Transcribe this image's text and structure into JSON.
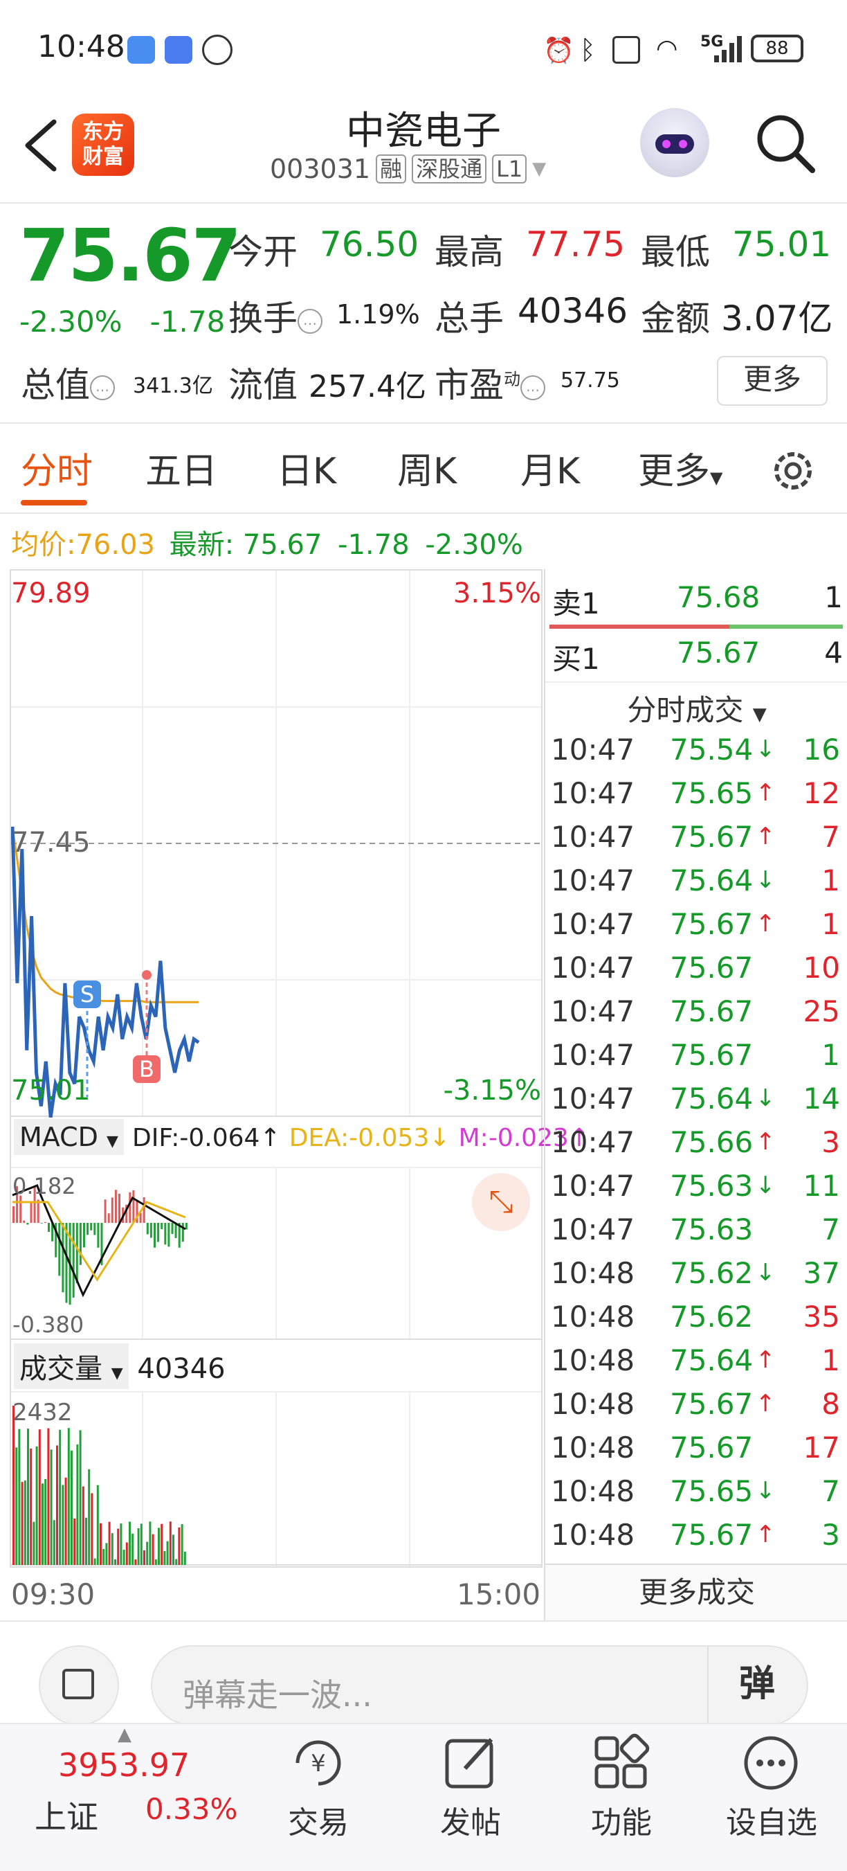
{
  "status_bar": {
    "time": "10:48",
    "battery": "88",
    "network": "5G"
  },
  "header": {
    "logo_text_line1": "东方",
    "logo_text_line2": "财富",
    "stock_name": "中瓷电子",
    "stock_code": "003031",
    "tags": [
      "融",
      "深股通",
      "L1"
    ]
  },
  "quote": {
    "price": "75.67",
    "change_pct": "-2.30%",
    "change_abs": "-1.78",
    "open_label": "今开",
    "open": "76.50",
    "high_label": "最高",
    "high": "77.75",
    "low_label": "最低",
    "low": "75.01",
    "turnover_label": "换手",
    "turnover": "1.19%",
    "volume_label": "总手",
    "volume": "40346",
    "amount_label": "金额",
    "amount": "3.07亿",
    "total_cap_label": "总值",
    "total_cap": "341.3亿",
    "float_cap_label": "流值",
    "float_cap": "257.4亿",
    "pe_label": "市盈",
    "pe_sup": "动",
    "pe": "57.75",
    "more_label": "更多",
    "colors": {
      "up": "#e0242b",
      "down": "#159a2a"
    }
  },
  "tabs": [
    "分时",
    "五日",
    "日K",
    "周K",
    "月K",
    "更多"
  ],
  "active_tab": "分时",
  "avg_line": {
    "avg_label": "均价:",
    "avg_value": "76.03",
    "latest_label": "最新:",
    "latest_value": "75.67",
    "latest_change": "-1.78",
    "latest_pct": "-2.30%"
  },
  "intraday": {
    "y_top": "79.89",
    "y_mid": "77.45",
    "y_bottom": "75.01",
    "pct_top": "3.15%",
    "pct_bottom": "-3.15%",
    "sell_marker": "S",
    "buy_marker": "B",
    "time_start": "09:30",
    "time_end": "15:00"
  },
  "macd": {
    "label": "MACD",
    "dif": "DIF:-0.064↑",
    "dea": "DEA:-0.053↓",
    "m": "M:-0.023↑",
    "top": "0.182",
    "bottom": "-0.380"
  },
  "volume_panel": {
    "label": "成交量",
    "value": "40346",
    "top": "2432"
  },
  "order_book": {
    "sell_label": "卖1",
    "sell_price": "75.68",
    "sell_qty": "1",
    "buy_label": "买1",
    "buy_price": "75.67",
    "buy_qty": "4",
    "section_title": "分时成交",
    "more_trades": "更多成交"
  },
  "trades": [
    {
      "time": "10:47",
      "price": "75.54",
      "arrow": "↓",
      "qty": "16",
      "dir": "down",
      "qdir": "down"
    },
    {
      "time": "10:47",
      "price": "75.65",
      "arrow": "↑",
      "qty": "12",
      "dir": "down",
      "qdir": "up"
    },
    {
      "time": "10:47",
      "price": "75.67",
      "arrow": "↑",
      "qty": "7",
      "dir": "down",
      "qdir": "up"
    },
    {
      "time": "10:47",
      "price": "75.64",
      "arrow": "↓",
      "qty": "1",
      "dir": "down",
      "qdir": "up"
    },
    {
      "time": "10:47",
      "price": "75.67",
      "arrow": "↑",
      "qty": "1",
      "dir": "down",
      "qdir": "up"
    },
    {
      "time": "10:47",
      "price": "75.67",
      "arrow": "",
      "qty": "10",
      "dir": "down",
      "qdir": "up"
    },
    {
      "time": "10:47",
      "price": "75.67",
      "arrow": "",
      "qty": "25",
      "dir": "down",
      "qdir": "up"
    },
    {
      "time": "10:47",
      "price": "75.67",
      "arrow": "",
      "qty": "1",
      "dir": "down",
      "qdir": "down"
    },
    {
      "time": "10:47",
      "price": "75.64",
      "arrow": "↓",
      "qty": "14",
      "dir": "down",
      "qdir": "down"
    },
    {
      "time": "10:47",
      "price": "75.66",
      "arrow": "↑",
      "qty": "3",
      "dir": "down",
      "qdir": "up"
    },
    {
      "time": "10:47",
      "price": "75.63",
      "arrow": "↓",
      "qty": "11",
      "dir": "down",
      "qdir": "down"
    },
    {
      "time": "10:47",
      "price": "75.63",
      "arrow": "",
      "qty": "7",
      "dir": "down",
      "qdir": "down"
    },
    {
      "time": "10:48",
      "price": "75.62",
      "arrow": "↓",
      "qty": "37",
      "dir": "down",
      "qdir": "down"
    },
    {
      "time": "10:48",
      "price": "75.62",
      "arrow": "",
      "qty": "35",
      "dir": "down",
      "qdir": "up"
    },
    {
      "time": "10:48",
      "price": "75.64",
      "arrow": "↑",
      "qty": "1",
      "dir": "down",
      "qdir": "up"
    },
    {
      "time": "10:48",
      "price": "75.67",
      "arrow": "↑",
      "qty": "8",
      "dir": "down",
      "qdir": "up"
    },
    {
      "time": "10:48",
      "price": "75.67",
      "arrow": "",
      "qty": "17",
      "dir": "down",
      "qdir": "up"
    },
    {
      "time": "10:48",
      "price": "75.65",
      "arrow": "↓",
      "qty": "7",
      "dir": "down",
      "qdir": "down"
    },
    {
      "time": "10:48",
      "price": "75.67",
      "arrow": "↑",
      "qty": "3",
      "dir": "down",
      "qdir": "down"
    }
  ],
  "comment_bar": {
    "placeholder": "弹幕走一波...",
    "danmaku_label": "弹"
  },
  "bottom_nav": {
    "index_value": "3953.97",
    "index_name": "上证",
    "index_pct": "0.33%",
    "items": [
      "交易",
      "发帖",
      "功能",
      "设自选"
    ]
  }
}
